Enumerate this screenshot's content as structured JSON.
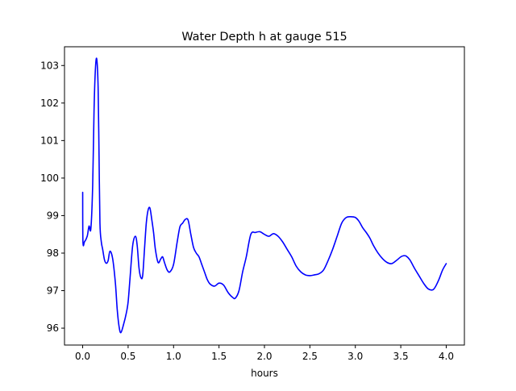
{
  "chart_data": {
    "type": "line",
    "title": "Water Depth h at gauge 515",
    "xlabel": "hours",
    "ylabel": "",
    "xlim": [
      -0.2,
      4.2
    ],
    "ylim": [
      95.55,
      103.5
    ],
    "xticks": [
      0.0,
      0.5,
      1.0,
      1.5,
      2.0,
      2.5,
      3.0,
      3.5,
      4.0
    ],
    "xtick_labels": [
      "0.0",
      "0.5",
      "1.0",
      "1.5",
      "2.0",
      "2.5",
      "3.0",
      "3.5",
      "4.0"
    ],
    "yticks": [
      96,
      97,
      98,
      99,
      100,
      101,
      102,
      103
    ],
    "ytick_labels": [
      "96",
      "97",
      "98",
      "99",
      "100",
      "101",
      "102",
      "103"
    ],
    "grid": false,
    "series": [
      {
        "color": "#0000ff",
        "x": [
          0.0,
          0.003,
          0.02,
          0.05,
          0.07,
          0.09,
          0.11,
          0.125,
          0.14,
          0.155,
          0.17,
          0.18,
          0.19,
          0.205,
          0.22,
          0.24,
          0.26,
          0.28,
          0.3,
          0.33,
          0.36,
          0.38,
          0.4,
          0.42,
          0.45,
          0.48,
          0.5,
          0.52,
          0.55,
          0.58,
          0.6,
          0.62,
          0.64,
          0.66,
          0.68,
          0.7,
          0.72,
          0.74,
          0.76,
          0.78,
          0.8,
          0.83,
          0.86,
          0.88,
          0.9,
          0.93,
          0.96,
          1.0,
          1.04,
          1.07,
          1.1,
          1.13,
          1.16,
          1.19,
          1.22,
          1.25,
          1.28,
          1.31,
          1.34,
          1.37,
          1.4,
          1.45,
          1.5,
          1.55,
          1.6,
          1.65,
          1.68,
          1.72,
          1.76,
          1.8,
          1.85,
          1.9,
          1.95,
          2.0,
          2.05,
          2.1,
          2.15,
          2.2,
          2.25,
          2.3,
          2.35,
          2.4,
          2.45,
          2.5,
          2.55,
          2.6,
          2.65,
          2.7,
          2.75,
          2.8,
          2.85,
          2.9,
          2.95,
          3.0,
          3.04,
          3.08,
          3.12,
          3.16,
          3.2,
          3.25,
          3.3,
          3.35,
          3.4,
          3.45,
          3.5,
          3.53,
          3.56,
          3.6,
          3.65,
          3.7,
          3.75,
          3.8,
          3.85,
          3.88,
          3.92,
          3.96,
          4.0
        ],
        "y": [
          99.62,
          98.3,
          98.3,
          98.45,
          98.72,
          98.65,
          99.8,
          101.8,
          102.9,
          103.17,
          102.4,
          100.6,
          98.8,
          98.3,
          98.1,
          97.82,
          97.73,
          97.8,
          98.05,
          97.85,
          97.2,
          96.5,
          96.05,
          95.88,
          96.1,
          96.4,
          96.7,
          97.3,
          98.2,
          98.45,
          98.2,
          97.6,
          97.35,
          97.4,
          98.1,
          98.8,
          99.15,
          99.2,
          98.9,
          98.55,
          98.1,
          97.75,
          97.85,
          97.9,
          97.75,
          97.55,
          97.5,
          97.7,
          98.3,
          98.7,
          98.8,
          98.9,
          98.88,
          98.5,
          98.15,
          98.0,
          97.9,
          97.7,
          97.5,
          97.3,
          97.18,
          97.12,
          97.2,
          97.15,
          96.95,
          96.82,
          96.8,
          97.0,
          97.5,
          97.9,
          98.5,
          98.55,
          98.57,
          98.5,
          98.45,
          98.52,
          98.45,
          98.3,
          98.1,
          97.9,
          97.65,
          97.5,
          97.42,
          97.4,
          97.42,
          97.45,
          97.55,
          97.8,
          98.1,
          98.45,
          98.8,
          98.95,
          98.97,
          98.95,
          98.85,
          98.68,
          98.55,
          98.4,
          98.2,
          98.0,
          97.85,
          97.75,
          97.72,
          97.8,
          97.9,
          97.93,
          97.92,
          97.82,
          97.6,
          97.4,
          97.2,
          97.05,
          97.02,
          97.1,
          97.3,
          97.55,
          97.72
        ]
      }
    ]
  }
}
